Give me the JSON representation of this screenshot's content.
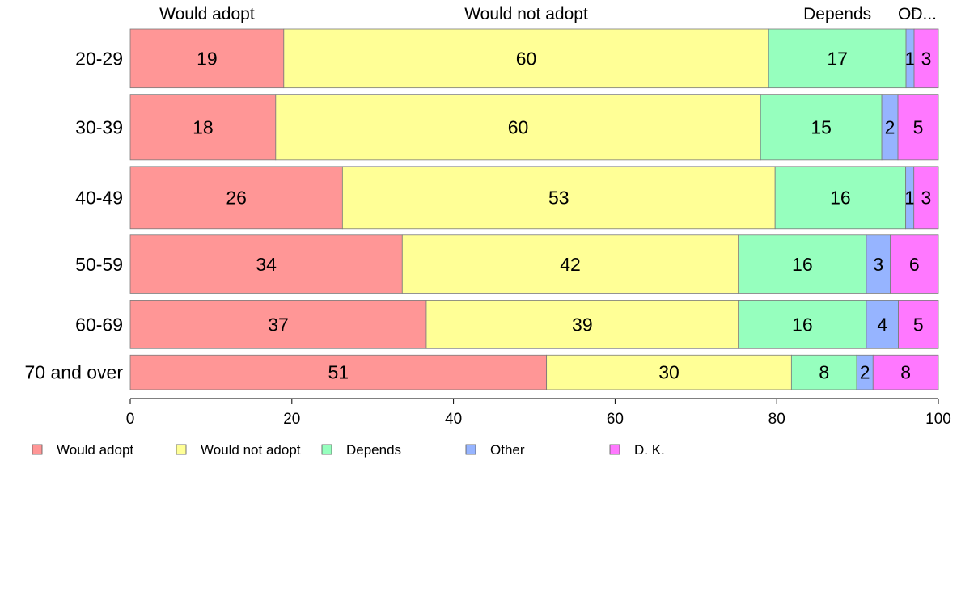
{
  "chart_data": {
    "type": "bar",
    "orientation": "horizontal",
    "stacked": true,
    "xlim": [
      0,
      100
    ],
    "x_ticks": [
      "0",
      "20",
      "40",
      "60",
      "80",
      "100"
    ],
    "categories": [
      "20-29",
      "30-39",
      "40-49",
      "50-59",
      "60-69",
      "70 and over"
    ],
    "row_weights": [
      17,
      19,
      18,
      17,
      14,
      10
    ],
    "series": [
      {
        "name": "Would adopt",
        "color": "#FF9696",
        "values": [
          19,
          18,
          26,
          34,
          37,
          51
        ]
      },
      {
        "name": "Would not adopt",
        "color": "#FFFF96",
        "values": [
          60,
          60,
          53,
          42,
          39,
          30
        ]
      },
      {
        "name": "Depends",
        "color": "#96FFBE",
        "values": [
          17,
          15,
          16,
          16,
          16,
          8
        ]
      },
      {
        "name": "Other",
        "color": "#96B4FF",
        "values": [
          1,
          2,
          1,
          3,
          4,
          2
        ]
      },
      {
        "name": "D. K.",
        "color": "#FF78FF",
        "values": [
          3,
          5,
          3,
          6,
          5,
          8
        ]
      }
    ],
    "top_labels": [
      "Would adopt",
      "Would not adopt",
      "Depends",
      "Ot",
      "D..."
    ],
    "legend": {
      "position": "bottom-left"
    }
  }
}
